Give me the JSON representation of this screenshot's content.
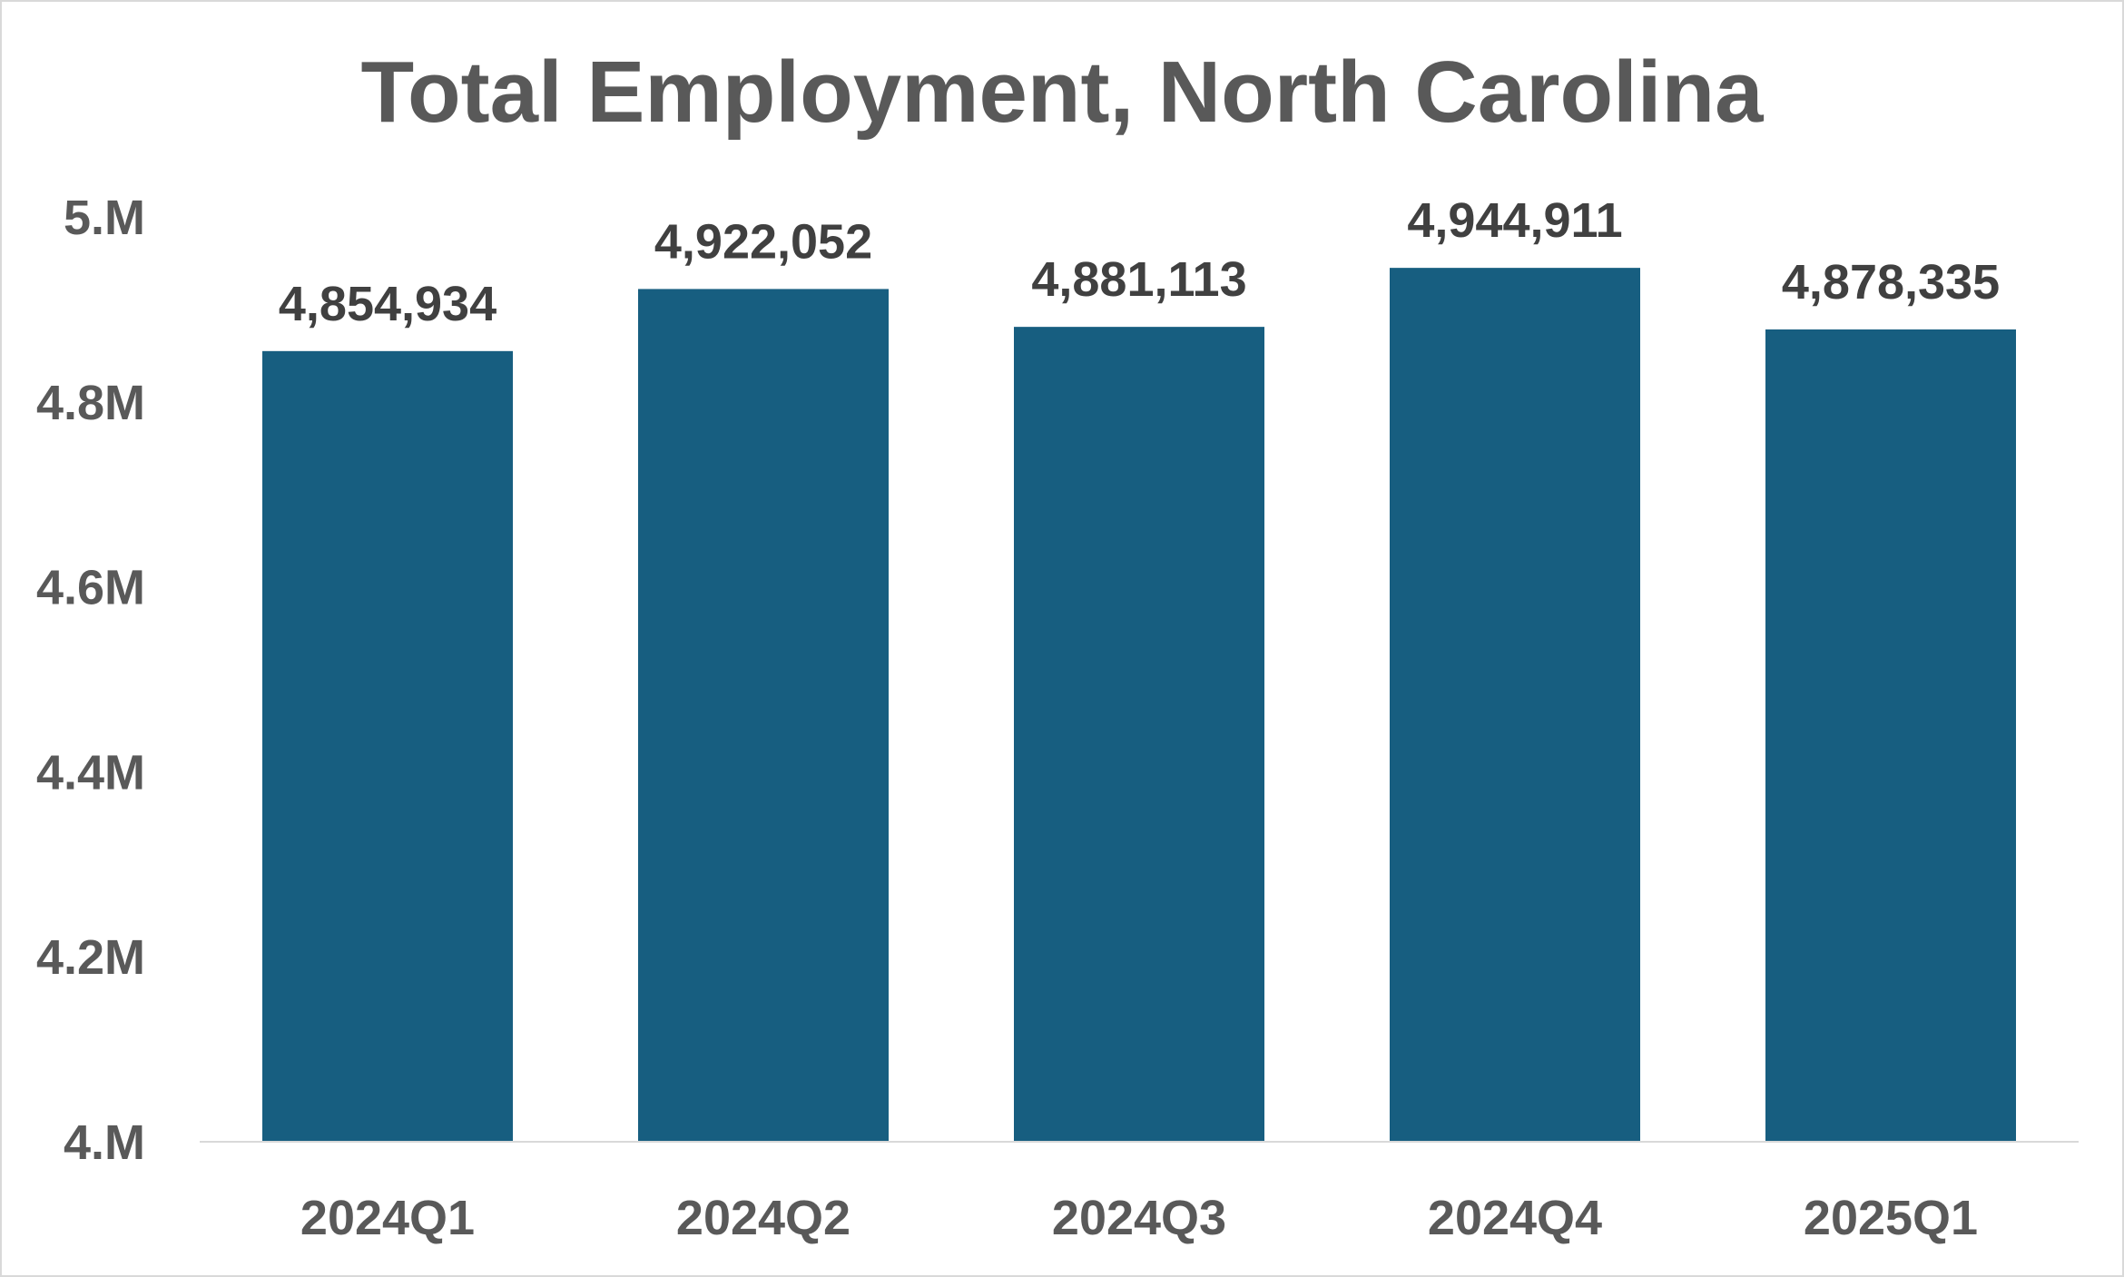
{
  "chart_data": {
    "type": "bar",
    "title": "Total Employment, North Carolina",
    "xlabel": "",
    "ylabel": "",
    "categories": [
      "2024Q1",
      "2024Q2",
      "2024Q3",
      "2024Q4",
      "2025Q1"
    ],
    "values": [
      4854934,
      4922052,
      4881113,
      4944911,
      4878335
    ],
    "data_labels": [
      "4,854,934",
      "4,922,052",
      "4,881,113",
      "4,944,911",
      "4,878,335"
    ],
    "ylim": [
      4000000,
      5000000
    ],
    "yticks": [
      4000000,
      4200000,
      4400000,
      4600000,
      4800000,
      5000000
    ],
    "ytick_labels": [
      "4.M",
      "4.2M",
      "4.4M",
      "4.6M",
      "4.8M",
      "5.M"
    ],
    "grid": false,
    "legend": "none",
    "colors": {
      "bar": "#175e80",
      "text": "#595959",
      "data_label": "#404040",
      "axis": "#d9d9d9"
    }
  }
}
